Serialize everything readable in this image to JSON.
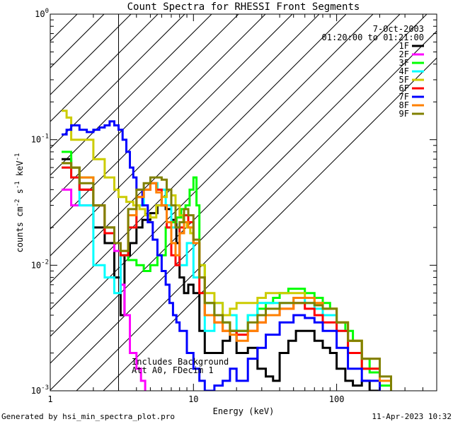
{
  "chart_data": {
    "type": "line",
    "title": "Count Spectra for RHESSI Front Segments",
    "xlabel": "Energy (keV)",
    "ylabel_base": "counts cm",
    "ylabel_exp1": "-2",
    "ylabel_mid": " s",
    "ylabel_exp2": "-1",
    "ylabel_end": " keV",
    "ylabel_exp3": "-1",
    "xscale": "log",
    "yscale": "log",
    "xlim": [
      1,
      500
    ],
    "ylim": [
      0.001,
      1
    ],
    "x_ticks": [
      {
        "v": 1,
        "label": "1"
      },
      {
        "v": 10,
        "label": "10"
      },
      {
        "v": 100,
        "label": "100"
      }
    ],
    "y_ticks": [
      {
        "v": 0.001,
        "base": "10",
        "exp": "-3"
      },
      {
        "v": 0.01,
        "base": "10",
        "exp": "-2"
      },
      {
        "v": 0.1,
        "base": "10",
        "exp": "-1"
      },
      {
        "v": 1,
        "base": "10",
        "exp": "0"
      }
    ],
    "hatch_region": [
      1,
      3
    ],
    "date": "7-Oct-2003",
    "time_range": "01:20:00 to 01:21:00",
    "annotation_1": "Includes Background",
    "annotation_2": "Att A0, FDecim 1",
    "series": [
      {
        "name": "1F",
        "color": "#000000",
        "x": [
          1.2,
          1.4,
          1.6,
          2.0,
          2.4,
          2.8,
          3.1,
          3.3,
          3.6,
          4.0,
          4.4,
          5.0,
          5.6,
          6.4,
          7.0,
          7.6,
          8.0,
          8.6,
          9.2,
          10,
          11,
          12,
          14,
          16,
          18,
          20,
          24,
          28,
          32,
          36,
          40,
          46,
          52,
          60,
          70,
          80,
          90,
          100,
          115,
          130,
          150,
          170,
          200,
          230
        ],
        "y": [
          0.07,
          0.06,
          0.04,
          0.02,
          0.015,
          0.008,
          0.004,
          0.012,
          0.015,
          0.02,
          0.023,
          0.026,
          0.03,
          0.028,
          0.023,
          0.015,
          0.008,
          0.006,
          0.007,
          0.006,
          0.003,
          0.002,
          0.002,
          0.0025,
          0.003,
          0.002,
          0.0022,
          0.0015,
          0.0013,
          0.0012,
          0.002,
          0.0025,
          0.003,
          0.003,
          0.0025,
          0.0022,
          0.002,
          0.0015,
          0.0012,
          0.0011,
          0.0012,
          0.001,
          0.0009,
          0.0008
        ]
      },
      {
        "name": "2F",
        "color": "#ff00ff",
        "x": [
          1.2,
          1.4,
          1.6,
          2.0,
          2.4,
          2.8,
          3.1,
          3.3,
          3.6,
          4.0,
          4.3,
          4.6
        ],
        "y": [
          0.04,
          0.03,
          0.03,
          0.03,
          0.02,
          0.013,
          0.007,
          0.004,
          0.002,
          0.0015,
          0.0012,
          0.0008
        ]
      },
      {
        "name": "3F",
        "color": "#00ff00",
        "x": [
          1.2,
          1.4,
          1.6,
          2.0,
          2.4,
          2.8,
          3.1,
          3.5,
          4.0,
          4.5,
          5.0,
          5.6,
          6.4,
          7.0,
          7.6,
          8.2,
          8.8,
          9.4,
          10,
          10.5,
          11,
          12,
          14,
          16,
          18,
          20,
          24,
          28,
          32,
          36,
          40,
          46,
          52,
          60,
          70,
          80,
          90,
          100,
          115,
          130,
          150,
          170,
          200,
          240
        ],
        "y": [
          0.08,
          0.06,
          0.05,
          0.03,
          0.02,
          0.015,
          0.012,
          0.011,
          0.01,
          0.009,
          0.01,
          0.012,
          0.02,
          0.022,
          0.024,
          0.028,
          0.03,
          0.04,
          0.05,
          0.03,
          0.01,
          0.005,
          0.004,
          0.0035,
          0.003,
          0.003,
          0.004,
          0.0045,
          0.005,
          0.0055,
          0.006,
          0.0065,
          0.0065,
          0.006,
          0.0055,
          0.005,
          0.0045,
          0.0035,
          0.003,
          0.0025,
          0.0018,
          0.0014,
          0.0011,
          0.0009
        ]
      },
      {
        "name": "4F",
        "color": "#00ffff",
        "x": [
          1.2,
          1.4,
          1.6,
          2.0,
          2.4,
          2.8,
          3.1,
          3.5,
          4.0,
          4.5,
          5.0,
          5.6,
          6.4,
          7.0,
          8.0,
          9.0,
          10,
          12,
          14,
          16,
          20,
          24,
          28,
          32,
          40,
          50,
          60,
          70,
          80,
          100,
          120,
          150,
          200
        ],
        "y": [
          0.06,
          0.05,
          0.03,
          0.01,
          0.008,
          0.006,
          0.012,
          0.02,
          0.03,
          0.04,
          0.045,
          0.04,
          0.03,
          0.02,
          0.01,
          0.015,
          0.008,
          0.003,
          0.005,
          0.004,
          0.003,
          0.004,
          0.005,
          0.005,
          0.005,
          0.0055,
          0.005,
          0.0045,
          0.004,
          0.003,
          0.002,
          0.0015,
          0.001
        ]
      },
      {
        "name": "5F",
        "color": "#cccc00",
        "x": [
          1.2,
          1.3,
          1.4,
          1.6,
          2.0,
          2.4,
          2.8,
          3.0,
          3.4,
          3.8,
          4.2,
          4.6,
          5.0,
          5.5,
          6.0,
          6.5,
          7.0,
          7.5,
          8.0,
          8.5,
          9.0,
          9.5,
          10,
          11,
          12,
          14,
          16,
          18,
          20,
          24,
          28,
          32,
          40,
          50,
          60,
          70,
          80,
          100,
          120,
          150,
          200
        ],
        "y": [
          0.17,
          0.15,
          0.1,
          0.1,
          0.07,
          0.05,
          0.04,
          0.035,
          0.032,
          0.03,
          0.028,
          0.025,
          0.024,
          0.03,
          0.035,
          0.04,
          0.036,
          0.03,
          0.025,
          0.022,
          0.02,
          0.018,
          0.015,
          0.01,
          0.006,
          0.005,
          0.004,
          0.0045,
          0.005,
          0.005,
          0.0055,
          0.006,
          0.006,
          0.006,
          0.0055,
          0.005,
          0.0045,
          0.0035,
          0.0025,
          0.0015,
          0.001
        ]
      },
      {
        "name": "6F",
        "color": "#ff0000",
        "x": [
          1.2,
          1.4,
          1.6,
          2.0,
          2.4,
          2.8,
          3.1,
          3.5,
          4.0,
          4.5,
          5.0,
          5.5,
          6.0,
          6.5,
          7.0,
          7.5,
          8.0,
          8.6,
          9.2,
          10,
          11,
          12,
          14,
          16,
          18,
          20,
          24,
          28,
          32,
          40,
          50,
          60,
          70,
          80,
          100,
          120,
          150,
          200
        ],
        "y": [
          0.06,
          0.05,
          0.04,
          0.03,
          0.018,
          0.015,
          0.012,
          0.02,
          0.035,
          0.04,
          0.045,
          0.04,
          0.03,
          0.02,
          0.012,
          0.01,
          0.02,
          0.025,
          0.022,
          0.015,
          0.006,
          0.004,
          0.0035,
          0.003,
          0.003,
          0.0028,
          0.003,
          0.0035,
          0.004,
          0.0045,
          0.005,
          0.0045,
          0.004,
          0.0035,
          0.003,
          0.002,
          0.0015,
          0.001
        ]
      },
      {
        "name": "7F",
        "color": "#0000ff",
        "x": [
          1.2,
          1.3,
          1.4,
          1.6,
          1.8,
          2.0,
          2.2,
          2.4,
          2.6,
          2.8,
          3.0,
          3.2,
          3.4,
          3.6,
          3.8,
          4.0,
          4.4,
          4.8,
          5.2,
          5.6,
          6.0,
          6.4,
          6.8,
          7.2,
          7.6,
          8.0,
          9.0,
          10,
          11,
          12,
          14,
          16,
          18,
          20,
          24,
          28,
          32,
          40,
          50,
          60,
          70,
          80,
          100,
          120,
          150,
          200
        ],
        "y": [
          0.11,
          0.12,
          0.13,
          0.12,
          0.115,
          0.12,
          0.125,
          0.13,
          0.14,
          0.13,
          0.12,
          0.1,
          0.08,
          0.06,
          0.05,
          0.04,
          0.03,
          0.022,
          0.016,
          0.012,
          0.009,
          0.007,
          0.005,
          0.004,
          0.0035,
          0.003,
          0.002,
          0.0015,
          0.0012,
          0.001,
          0.0011,
          0.0012,
          0.0015,
          0.0012,
          0.0018,
          0.0022,
          0.0028,
          0.0035,
          0.004,
          0.0038,
          0.0035,
          0.003,
          0.0022,
          0.0015,
          0.0012,
          0.0009
        ]
      },
      {
        "name": "8F",
        "color": "#ff8000",
        "x": [
          1.2,
          1.4,
          1.6,
          2.0,
          2.4,
          2.8,
          3.1,
          3.5,
          4.0,
          4.5,
          5.0,
          5.5,
          6.0,
          6.5,
          7.0,
          7.5,
          8.0,
          8.6,
          9.2,
          10,
          11,
          12,
          14,
          16,
          18,
          20,
          24,
          28,
          32,
          40,
          50,
          60,
          70,
          80,
          100,
          120,
          150,
          200,
          240
        ],
        "y": [
          0.065,
          0.06,
          0.05,
          0.03,
          0.02,
          0.015,
          0.013,
          0.025,
          0.035,
          0.04,
          0.045,
          0.038,
          0.03,
          0.022,
          0.015,
          0.012,
          0.018,
          0.022,
          0.02,
          0.015,
          0.008,
          0.004,
          0.0035,
          0.003,
          0.0028,
          0.0025,
          0.003,
          0.0035,
          0.004,
          0.0045,
          0.0055,
          0.0055,
          0.005,
          0.0045,
          0.0035,
          0.0025,
          0.0018,
          0.0012,
          0.001
        ]
      },
      {
        "name": "9F",
        "color": "#808000",
        "x": [
          1.2,
          1.4,
          1.6,
          2.0,
          2.4,
          2.8,
          3.1,
          3.5,
          4.0,
          4.5,
          5.0,
          5.5,
          6.0,
          6.5,
          7.0,
          7.5,
          8.0,
          8.6,
          9.2,
          10,
          11,
          12,
          14,
          16,
          18,
          20,
          24,
          28,
          32,
          40,
          50,
          60,
          70,
          80,
          100,
          120,
          150,
          200,
          240
        ],
        "y": [
          0.065,
          0.06,
          0.045,
          0.03,
          0.02,
          0.015,
          0.013,
          0.028,
          0.04,
          0.045,
          0.05,
          0.05,
          0.048,
          0.04,
          0.03,
          0.02,
          0.022,
          0.028,
          0.025,
          0.016,
          0.008,
          0.005,
          0.004,
          0.0035,
          0.003,
          0.003,
          0.0035,
          0.004,
          0.0045,
          0.005,
          0.005,
          0.005,
          0.0048,
          0.0045,
          0.0035,
          0.0025,
          0.0018,
          0.0013,
          0.001
        ]
      }
    ]
  },
  "footer": {
    "left": "Generated by hsi_min_spectra_plot.pro",
    "right": "11-Apr-2023 10:32"
  }
}
